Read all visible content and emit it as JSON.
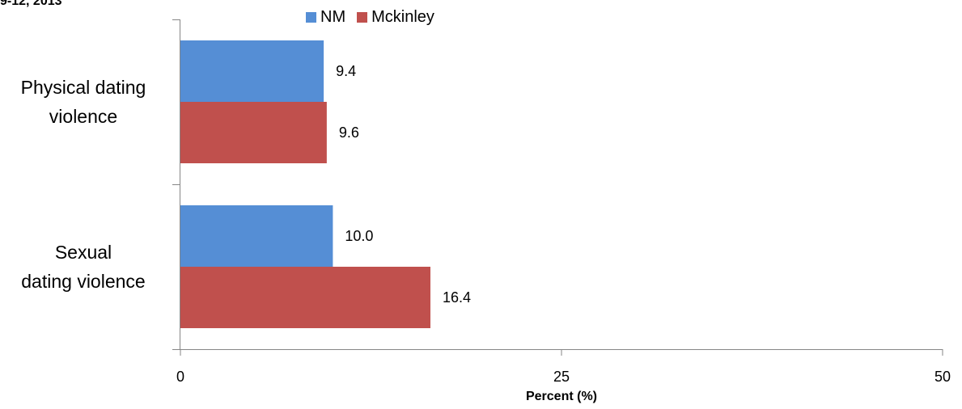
{
  "chart_data": {
    "type": "bar",
    "orientation": "horizontal",
    "title": "9-12, 2013",
    "categories": [
      "Physical dating violence",
      "Sexual dating violence"
    ],
    "category_label_lines": [
      [
        "Physical dating",
        "violence"
      ],
      [
        "Sexual",
        "dating violence"
      ]
    ],
    "series": [
      {
        "name": "NM",
        "values": [
          9.4,
          10.0
        ],
        "value_labels": [
          "9.4",
          "10.0"
        ],
        "color": "#558ED5"
      },
      {
        "name": "Mckinley",
        "values": [
          9.6,
          16.4
        ],
        "value_labels": [
          "9.6",
          "16.4"
        ],
        "color": "#C0504D"
      }
    ],
    "xlabel": "Percent (%)",
    "ylabel": "",
    "xlim": [
      0,
      50
    ],
    "xticks": [
      0,
      25,
      50
    ],
    "xtick_labels": [
      "0",
      "25",
      "50"
    ],
    "grid": false,
    "legend_position": "top"
  }
}
